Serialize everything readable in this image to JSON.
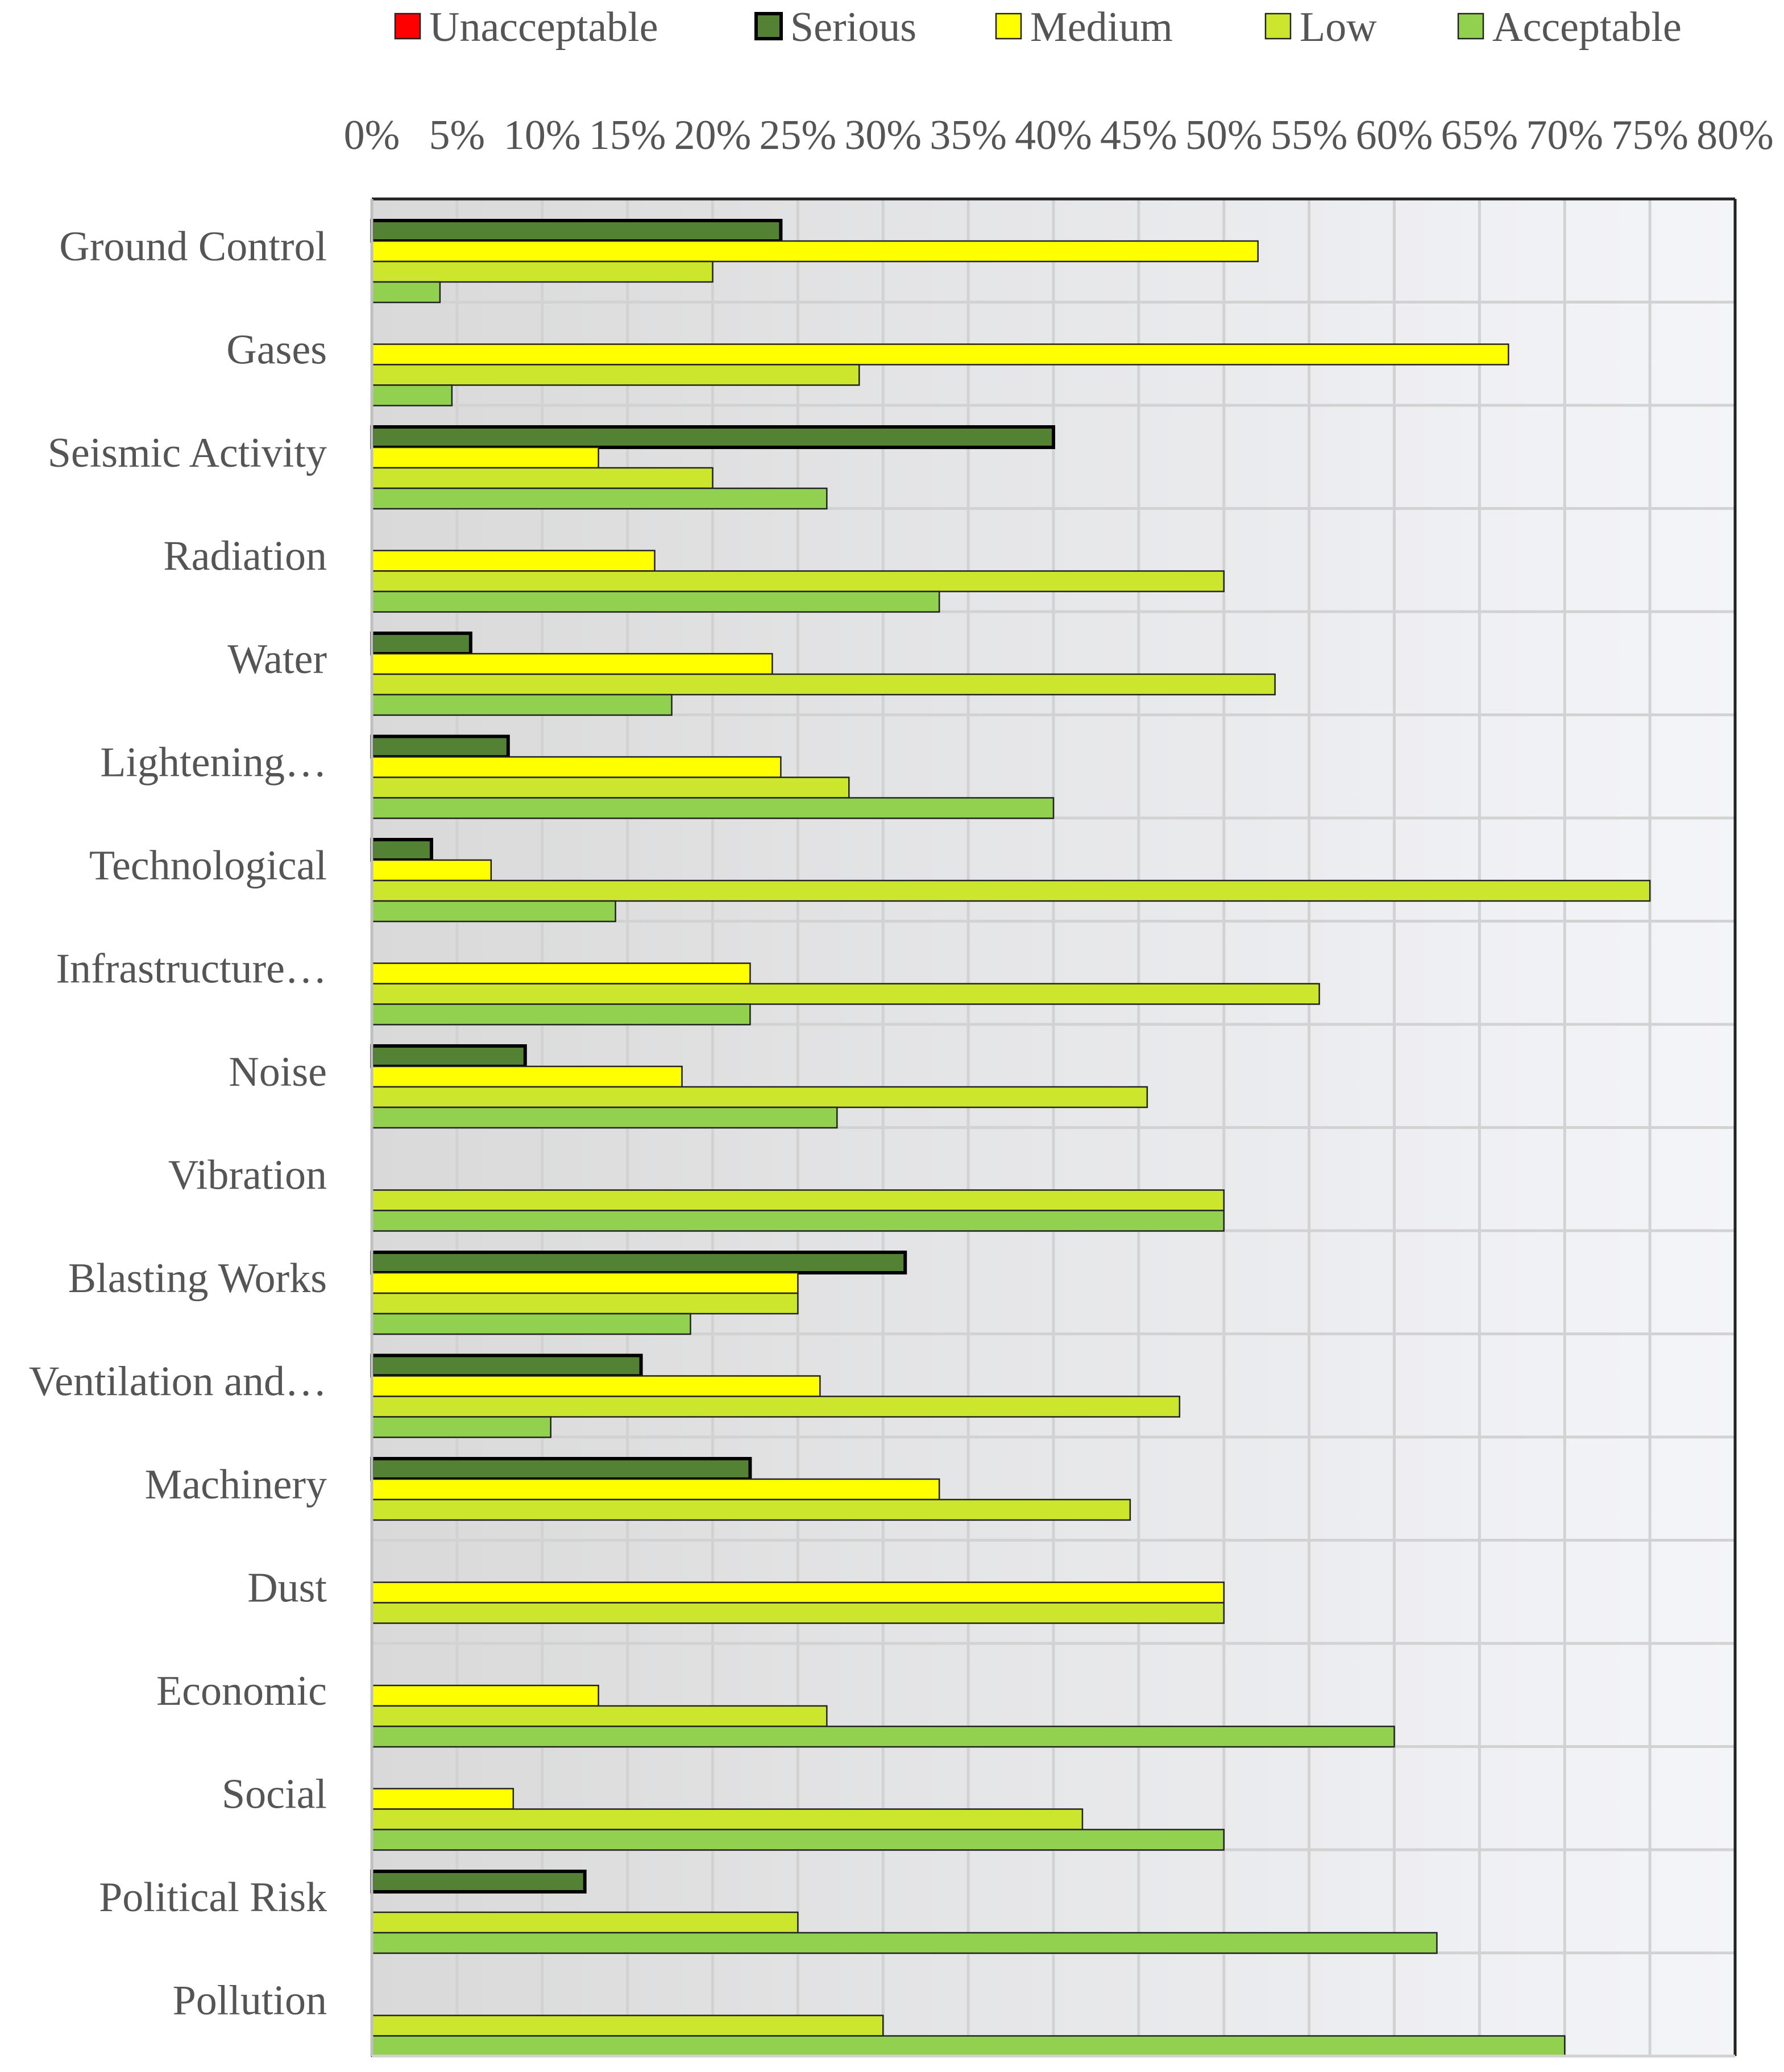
{
  "chart_data": {
    "type": "bar",
    "orientation": "horizontal",
    "categories": [
      "Ground Control",
      "Gases",
      "Seismic Activity",
      "Radiation",
      "Water",
      "Lightening…",
      "Technological",
      "Infrastructure…",
      "Noise",
      "Vibration",
      "Blasting Works",
      "Ventilation and…",
      "Machinery",
      "Dust",
      "Economic",
      "Social",
      "Political Risk",
      "Pollution"
    ],
    "series": [
      {
        "name": "Unacceptable",
        "color": "#ff0000",
        "values": [
          0,
          0,
          0,
          0,
          0,
          0,
          0,
          0,
          0,
          0,
          0,
          0,
          0,
          0,
          0,
          0,
          0,
          0
        ]
      },
      {
        "name": "Serious",
        "color": "#548235",
        "values": [
          24,
          0,
          40,
          0,
          5.8,
          8,
          3.5,
          0,
          9,
          0,
          31.3,
          15.8,
          22.2,
          0,
          0,
          0,
          12.5,
          0
        ]
      },
      {
        "name": "Medium",
        "color": "#ffff00",
        "values": [
          52,
          66.7,
          13.3,
          16.6,
          23.5,
          24,
          7,
          22.2,
          18.2,
          0,
          25,
          26.3,
          33.3,
          50,
          13.3,
          8.3,
          0,
          0
        ]
      },
      {
        "name": "Low",
        "color": "#cce62e",
        "values": [
          20,
          28.6,
          20,
          50,
          53,
          28,
          75,
          55.6,
          45.5,
          50,
          25,
          47.4,
          44.5,
          50,
          26.7,
          41.7,
          25,
          30
        ]
      },
      {
        "name": "Acceptable",
        "color": "#92d050",
        "values": [
          4,
          4.7,
          26.7,
          33.3,
          17.6,
          40,
          14.3,
          22.2,
          27.3,
          50,
          18.7,
          10.5,
          0,
          0,
          60,
          50,
          62.5,
          70
        ]
      }
    ],
    "x_ticks": [
      "0%",
      "5%",
      "10%",
      "15%",
      "20%",
      "25%",
      "30%",
      "35%",
      "40%",
      "45%",
      "50%",
      "55%",
      "60%",
      "65%",
      "70%",
      "75%",
      "80%"
    ],
    "xlim": [
      0,
      80
    ],
    "x_unit": "%",
    "grid": true,
    "legend": "top",
    "title": "",
    "xlabel": "",
    "ylabel": ""
  }
}
